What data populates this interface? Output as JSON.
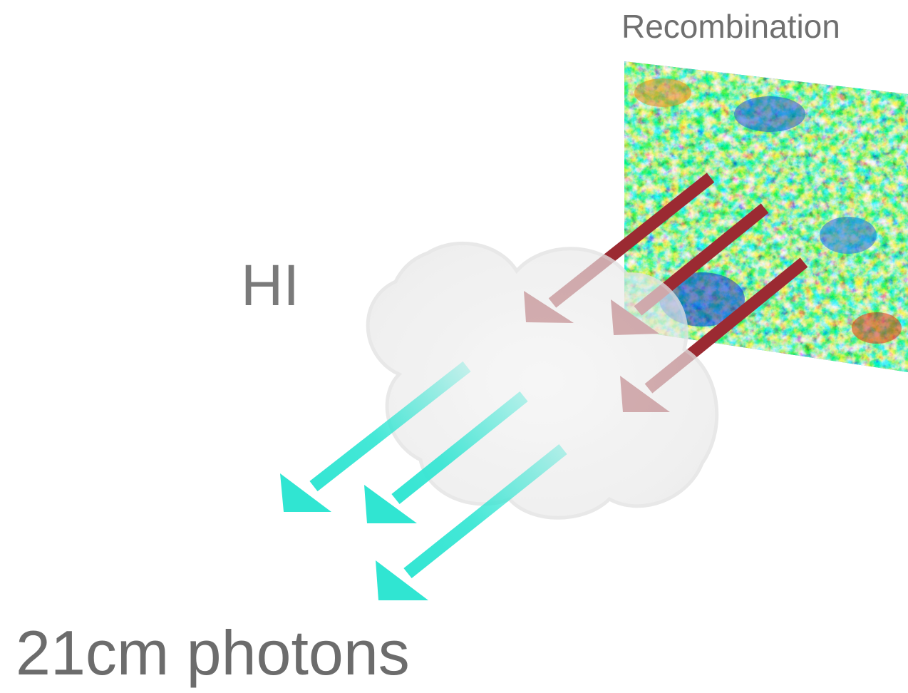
{
  "labels": {
    "recombination": "Recombination",
    "hi": "HI",
    "photons": "21cm photons"
  },
  "colors": {
    "cmb_arrow": "#9b2a32",
    "photon_arrow": "#30e5d2",
    "cloud": "#ededed",
    "text": "#7a7a7a"
  }
}
